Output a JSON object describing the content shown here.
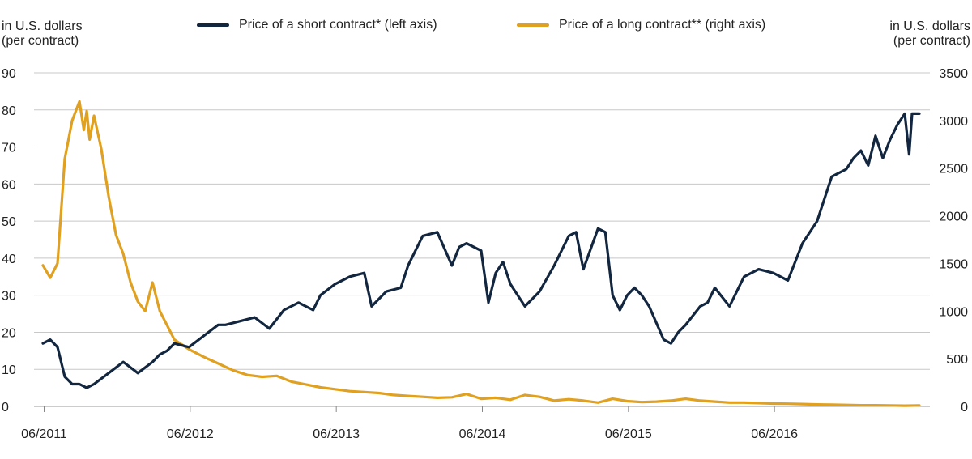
{
  "left_axis_unit": {
    "line1": "in U.S. dollars",
    "line2": "(per contract)"
  },
  "right_axis_unit": {
    "line1": "in U.S. dollars",
    "line2": "(per contract)"
  },
  "chart_data": {
    "type": "line",
    "title": "",
    "legend_position": "top-center",
    "grid": "horizontal",
    "x_ticks": [
      "06/2011",
      "06/2012",
      "06/2013",
      "06/2014",
      "06/2015",
      "06/2016"
    ],
    "xlim": [
      2011.45,
      2017.45
    ],
    "left_axis": {
      "ticks": [
        "90",
        "80",
        "70",
        "60",
        "50",
        "40",
        "30",
        "20",
        "10",
        "0"
      ],
      "ylim": [
        0,
        90
      ]
    },
    "right_axis": {
      "ticks": [
        "3500",
        "3000",
        "2500",
        "2000",
        "1500",
        "1000",
        "500",
        "0"
      ],
      "ylim": [
        0,
        3500
      ]
    },
    "series": [
      {
        "name": "Price of a short contract* (left axis)",
        "axis": "left",
        "color": "#12263f",
        "x": [
          2011.45,
          2011.5,
          2011.55,
          2011.6,
          2011.65,
          2011.7,
          2011.75,
          2011.8,
          2011.9,
          2012.0,
          2012.1,
          2012.2,
          2012.25,
          2012.3,
          2012.35,
          2012.45,
          2012.55,
          2012.65,
          2012.7,
          2012.8,
          2012.9,
          2013.0,
          2013.1,
          2013.2,
          2013.3,
          2013.35,
          2013.45,
          2013.55,
          2013.65,
          2013.7,
          2013.8,
          2013.9,
          2013.95,
          2014.05,
          2014.15,
          2014.25,
          2014.3,
          2014.35,
          2014.45,
          2014.5,
          2014.55,
          2014.6,
          2014.65,
          2014.75,
          2014.85,
          2014.95,
          2015.05,
          2015.1,
          2015.15,
          2015.25,
          2015.3,
          2015.35,
          2015.4,
          2015.45,
          2015.5,
          2015.55,
          2015.6,
          2015.7,
          2015.75,
          2015.8,
          2015.85,
          2015.95,
          2016.0,
          2016.05,
          2016.15,
          2016.2,
          2016.25,
          2016.35,
          2016.45,
          2016.55,
          2016.65,
          2016.75,
          2016.85,
          2016.95,
          2017.0,
          2017.05,
          2017.1,
          2017.15,
          2017.2,
          2017.25,
          2017.3,
          2017.35,
          2017.38,
          2017.4,
          2017.45
        ],
        "y": [
          17,
          18,
          16,
          8,
          6,
          6,
          5,
          6,
          9,
          12,
          9,
          12,
          14,
          15,
          17,
          16,
          19,
          22,
          22,
          23,
          24,
          21,
          26,
          28,
          26,
          30,
          33,
          35,
          36,
          27,
          31,
          32,
          38,
          46,
          47,
          38,
          43,
          44,
          42,
          28,
          36,
          39,
          33,
          27,
          31,
          38,
          46,
          47,
          37,
          48,
          47,
          30,
          26,
          30,
          32,
          30,
          27,
          18,
          17,
          20,
          22,
          27,
          28,
          32,
          27,
          31,
          35,
          37,
          36,
          34,
          44,
          50,
          62,
          64,
          67,
          69,
          65,
          73,
          67,
          72,
          76,
          79,
          68,
          79,
          79
        ]
      },
      {
        "name": "Price of a long contract** (right axis)",
        "axis": "right",
        "color": "#e0a020",
        "x": [
          2011.45,
          2011.5,
          2011.55,
          2011.6,
          2011.65,
          2011.7,
          2011.73,
          2011.75,
          2011.77,
          2011.8,
          2011.85,
          2011.9,
          2011.95,
          2012.0,
          2012.05,
          2012.1,
          2012.15,
          2012.2,
          2012.25,
          2012.3,
          2012.35,
          2012.45,
          2012.55,
          2012.65,
          2012.75,
          2012.85,
          2012.95,
          2013.05,
          2013.15,
          2013.25,
          2013.35,
          2013.45,
          2013.55,
          2013.65,
          2013.75,
          2013.85,
          2013.95,
          2014.05,
          2014.15,
          2014.25,
          2014.35,
          2014.45,
          2014.55,
          2014.65,
          2014.75,
          2014.85,
          2014.95,
          2015.05,
          2015.15,
          2015.25,
          2015.35,
          2015.45,
          2015.55,
          2015.65,
          2015.75,
          2015.85,
          2015.95,
          2016.05,
          2016.15,
          2016.25,
          2016.35,
          2016.45,
          2016.55,
          2016.65,
          2016.75,
          2016.85,
          2016.95,
          2017.05,
          2017.15,
          2017.25,
          2017.35,
          2017.45
        ],
        "y": [
          1480,
          1350,
          1500,
          2600,
          3000,
          3200,
          2900,
          3100,
          2800,
          3050,
          2700,
          2200,
          1800,
          1600,
          1300,
          1100,
          1000,
          1300,
          1000,
          850,
          700,
          600,
          520,
          450,
          380,
          330,
          310,
          320,
          260,
          230,
          200,
          180,
          160,
          150,
          140,
          120,
          110,
          100,
          90,
          95,
          130,
          80,
          90,
          70,
          120,
          100,
          60,
          75,
          60,
          40,
          80,
          55,
          45,
          50,
          60,
          80,
          60,
          50,
          40,
          40,
          35,
          30,
          28,
          25,
          20,
          18,
          15,
          12,
          12,
          10,
          8,
          10
        ]
      }
    ]
  }
}
